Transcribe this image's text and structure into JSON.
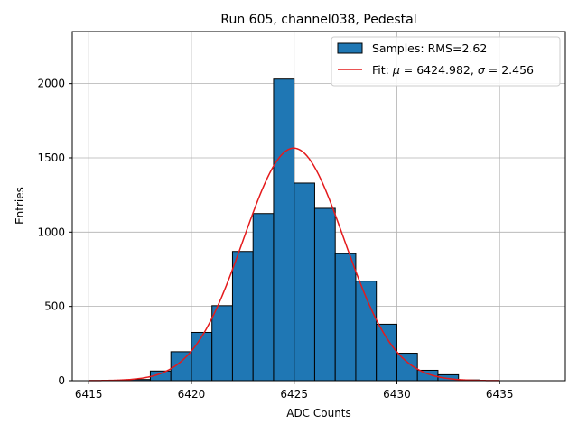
{
  "chart_data": {
    "type": "bar",
    "title": "Run 605, channel038, Pedestal",
    "xlabel": "ADC Counts",
    "ylabel": "Entries",
    "xlim": [
      6414.2,
      6438.2
    ],
    "ylim": [
      0,
      2350
    ],
    "xticks": [
      6415,
      6420,
      6425,
      6430,
      6435
    ],
    "yticks": [
      0,
      500,
      1000,
      1500,
      2000
    ],
    "grid": true,
    "legend_position": "upper-right",
    "bar_color": "#1f77b4",
    "fit_color": "#e41a1c",
    "histogram": {
      "name": "Samples: RMS=2.62",
      "bin_width": 1,
      "bins": [
        {
          "x": 6417,
          "count": 8
        },
        {
          "x": 6418,
          "count": 65
        },
        {
          "x": 6419,
          "count": 195
        },
        {
          "x": 6420,
          "count": 325
        },
        {
          "x": 6421,
          "count": 505
        },
        {
          "x": 6422,
          "count": 870
        },
        {
          "x": 6423,
          "count": 1125
        },
        {
          "x": 6424,
          "count": 2030
        },
        {
          "x": 6425,
          "count": 1330
        },
        {
          "x": 6426,
          "count": 1160
        },
        {
          "x": 6427,
          "count": 855
        },
        {
          "x": 6428,
          "count": 670
        },
        {
          "x": 6429,
          "count": 380
        },
        {
          "x": 6430,
          "count": 185
        },
        {
          "x": 6431,
          "count": 70
        },
        {
          "x": 6432,
          "count": 40
        },
        {
          "x": 6433,
          "count": 5
        }
      ]
    },
    "fit": {
      "name_prefix": "Fit: ",
      "mu_symbol": "μ",
      "sigma_symbol": "σ",
      "mu": "6424.982",
      "sigma": "2.456",
      "separator": ", ",
      "equals": " = ",
      "amplitude": 1565,
      "x_range": [
        6415,
        6435
      ]
    }
  }
}
